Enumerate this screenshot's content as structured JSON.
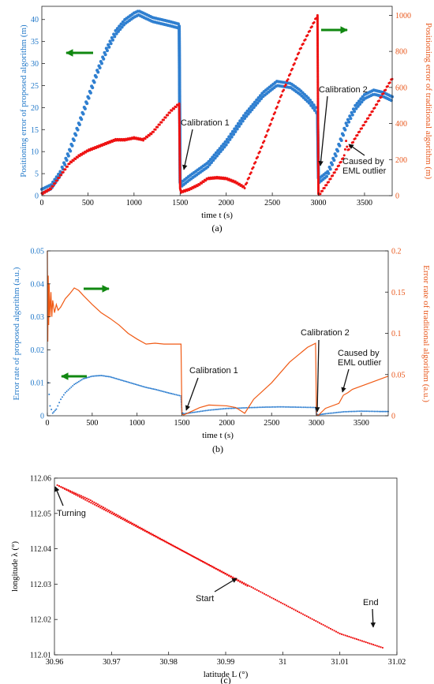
{
  "chart_data": [
    {
      "type": "line",
      "panel_label": "(a)",
      "xlabel": "time t (s)",
      "ylabel_left": "Positioning error of proposed algorithm (m)",
      "ylabel_right": "Positioning error of traditional algorithm (m)",
      "xlim": [
        0,
        3800
      ],
      "ylim_left": [
        0,
        43
      ],
      "ylim_right": [
        0,
        1050
      ],
      "xticks": [
        0,
        500,
        1000,
        1500,
        2000,
        2500,
        3000,
        3500
      ],
      "yticks_left": [
        0,
        5,
        10,
        15,
        20,
        25,
        30,
        35,
        40
      ],
      "yticks_right": [
        0,
        200,
        400,
        600,
        800,
        1000
      ],
      "grid": false,
      "colors": {
        "proposed": "#2f7fd0",
        "traditional": "#ee1111",
        "arrow": "#118811"
      },
      "series": [
        {
          "axis": "left",
          "color": "#2f7fd0",
          "x": [
            0,
            100,
            200,
            300,
            400,
            500,
            600,
            700,
            800,
            900,
            1000,
            1050,
            1100,
            1200,
            1300,
            1400,
            1490,
            1500,
            1510,
            1600,
            1800,
            2000,
            2200,
            2400,
            2550,
            2700,
            2800,
            2900,
            2990,
            3000,
            3010,
            3100,
            3200,
            3300,
            3400,
            3500,
            3600,
            3700,
            3800
          ],
          "y": [
            1,
            2,
            5,
            10,
            16,
            22,
            28,
            33,
            37,
            39.5,
            41,
            41.5,
            41,
            40,
            39.5,
            39,
            38.5,
            3,
            2.5,
            4,
            7,
            12,
            18,
            23,
            25.5,
            25,
            23.5,
            21.5,
            19,
            4,
            3.5,
            5,
            10,
            16,
            20,
            22.5,
            23.5,
            23,
            22
          ]
        },
        {
          "axis": "right",
          "color": "#ee1111",
          "x": [
            0,
            100,
            200,
            300,
            400,
            500,
            600,
            700,
            800,
            900,
            1000,
            1100,
            1200,
            1300,
            1400,
            1490,
            1500,
            1510,
            1600,
            1700,
            1800,
            1900,
            2000,
            2100,
            2200,
            2400,
            2600,
            2800,
            2990,
            3000,
            3010,
            3100,
            3200,
            3280,
            3300,
            3320,
            3400,
            3600,
            3800
          ],
          "y": [
            10,
            40,
            110,
            180,
            220,
            250,
            270,
            290,
            310,
            310,
            320,
            310,
            350,
            410,
            470,
            510,
            40,
            20,
            35,
            60,
            95,
            100,
            95,
            75,
            45,
            290,
            560,
            810,
            1000,
            10,
            5,
            70,
            150,
            220,
            300,
            250,
            320,
            480,
            650
          ]
        }
      ],
      "annotations": [
        {
          "text": "Calibration 1"
        },
        {
          "text": "Calibration 2"
        },
        {
          "text": "Caused by"
        },
        {
          "text": "EML outlier"
        }
      ]
    },
    {
      "type": "line",
      "panel_label": "(b)",
      "xlabel": "time t (s)",
      "ylabel_left": "Error rate of proposed algorithm (a.u.)",
      "ylabel_right": "Error rate of traditional algorithm (a.u.)",
      "xlim": [
        0,
        3800
      ],
      "ylim_left": [
        0,
        0.05
      ],
      "ylim_right": [
        0,
        0.2
      ],
      "xticks": [
        0,
        500,
        1000,
        1500,
        2000,
        2500,
        3000,
        3500
      ],
      "yticks_left": [
        0,
        0.01,
        0.02,
        0.03,
        0.04,
        0.05
      ],
      "yticks_right": [
        0,
        0.05,
        0.1,
        0.15,
        0.2
      ],
      "ytick_labels_left": [
        "0",
        "0.01",
        "0.02",
        "0.03",
        "0.04",
        "0.05"
      ],
      "ytick_labels_right": [
        "0",
        "0.05",
        "0.1",
        "0.15",
        "0.2"
      ],
      "grid": false,
      "colors": {
        "proposed": "#2f7fd0",
        "traditional": "#f05a14",
        "arrow": "#118811"
      },
      "series": [
        {
          "axis": "left",
          "color": "#2f7fd0",
          "x": [
            10,
            30,
            60,
            100,
            150,
            200,
            300,
            400,
            500,
            600,
            700,
            800,
            900,
            1000,
            1100,
            1200,
            1300,
            1400,
            1490,
            1500,
            1520,
            1600,
            1800,
            2000,
            2200,
            2400,
            2600,
            2800,
            2990,
            3000,
            3020,
            3100,
            3300,
            3500,
            3700,
            3800
          ],
          "y": [
            0.01,
            0.003,
            0.0008,
            0.002,
            0.005,
            0.007,
            0.0095,
            0.0112,
            0.012,
            0.0122,
            0.0118,
            0.011,
            0.0102,
            0.0094,
            0.0086,
            0.008,
            0.0073,
            0.0066,
            0.006,
            0.001,
            0.0006,
            0.0009,
            0.0017,
            0.0022,
            0.0024,
            0.0026,
            0.0027,
            0.0026,
            0.0025,
            0.0004,
            0.0003,
            0.0006,
            0.0012,
            0.0014,
            0.0013,
            0.0013
          ]
        },
        {
          "axis": "right",
          "color": "#f05a14",
          "x": [
            0,
            5,
            10,
            15,
            20,
            30,
            40,
            50,
            60,
            80,
            100,
            120,
            150,
            180,
            200,
            250,
            300,
            350,
            400,
            500,
            600,
            700,
            800,
            900,
            1000,
            1100,
            1200,
            1300,
            1400,
            1490,
            1500,
            1520,
            1600,
            1700,
            1800,
            2000,
            2100,
            2200,
            2300,
            2500,
            2700,
            2900,
            2990,
            3000,
            3020,
            3100,
            3250,
            3300,
            3350,
            3400,
            3600,
            3800
          ],
          "y": [
            0.2,
            0.09,
            0.17,
            0.11,
            0.16,
            0.12,
            0.15,
            0.12,
            0.14,
            0.125,
            0.135,
            0.128,
            0.132,
            0.138,
            0.142,
            0.148,
            0.155,
            0.152,
            0.146,
            0.135,
            0.125,
            0.118,
            0.11,
            0.1,
            0.093,
            0.087,
            0.088,
            0.087,
            0.087,
            0.087,
            0.002,
            0.001,
            0.005,
            0.01,
            0.013,
            0.012,
            0.01,
            0.003,
            0.02,
            0.04,
            0.065,
            0.083,
            0.088,
            0.001,
            0.0005,
            0.009,
            0.015,
            0.025,
            0.028,
            0.032,
            0.04,
            0.048
          ]
        }
      ],
      "annotations": [
        {
          "text": "Calibration 1"
        },
        {
          "text": "Calibration 2"
        },
        {
          "text": "Caused by"
        },
        {
          "text": "EML outlier"
        }
      ]
    },
    {
      "type": "scatter",
      "panel_label": "(c)",
      "xlabel": "latitude L (°)",
      "ylabel": "longitude λ (°)",
      "xlim": [
        30.96,
        31.02
      ],
      "ylim": [
        112.01,
        112.06
      ],
      "xticks": [
        30.96,
        30.97,
        30.98,
        30.99,
        31.0,
        31.01,
        31.02
      ],
      "yticks": [
        112.01,
        112.02,
        112.03,
        112.04,
        112.05,
        112.06
      ],
      "xtick_labels": [
        "30.96",
        "30.97",
        "30.98",
        "30.99",
        "31",
        "31.01",
        "31.02"
      ],
      "ytick_labels": [
        "112.01",
        "112.02",
        "112.03",
        "112.04",
        "112.05",
        "112.06"
      ],
      "grid": false,
      "colors": {
        "track": "#ee1111"
      },
      "series": [
        {
          "color": "#ee1111",
          "x": [
            30.9938,
            30.985,
            30.975,
            30.966,
            30.9605,
            30.97,
            30.98,
            30.99,
            31.0,
            31.01,
            31.0175
          ],
          "y": [
            112.0295,
            112.0372,
            112.046,
            112.054,
            112.058,
            112.05,
            112.0415,
            112.033,
            112.0245,
            112.016,
            112.012
          ]
        }
      ],
      "annotations": [
        {
          "text": "Turning"
        },
        {
          "text": "Start"
        },
        {
          "text": "End"
        }
      ]
    }
  ]
}
